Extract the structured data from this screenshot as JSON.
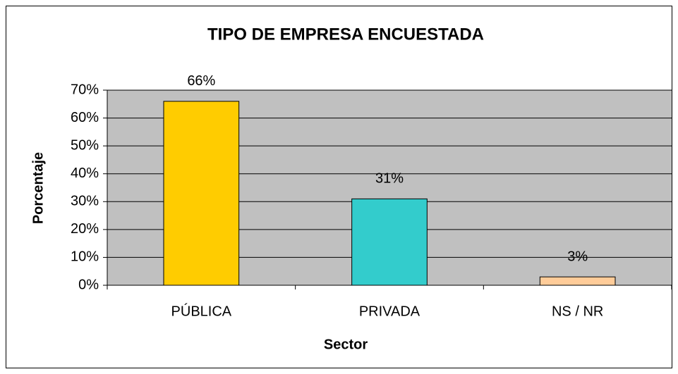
{
  "chart_data": {
    "type": "bar",
    "title": "TIPO DE EMPRESA ENCUESTADA",
    "x_label": "Sector",
    "y_label": "Porcentaje",
    "categories": [
      "PÚBLICA",
      "PRIVADA",
      "NS / NR"
    ],
    "values": [
      66,
      31,
      3
    ],
    "value_labels": [
      "66%",
      "31%",
      "3%"
    ],
    "colors": [
      "#FFCC00",
      "#33CCCC",
      "#FFCC99"
    ],
    "ylim": [
      0,
      70
    ],
    "yticks": [
      {
        "value": 0,
        "label": "0%"
      },
      {
        "value": 10,
        "label": "10%"
      },
      {
        "value": 20,
        "label": "20%"
      },
      {
        "value": 30,
        "label": "30%"
      },
      {
        "value": 40,
        "label": "40%"
      },
      {
        "value": 50,
        "label": "50%"
      },
      {
        "value": 60,
        "label": "60%"
      },
      {
        "value": 70,
        "label": "70%"
      }
    ],
    "grid": true
  }
}
